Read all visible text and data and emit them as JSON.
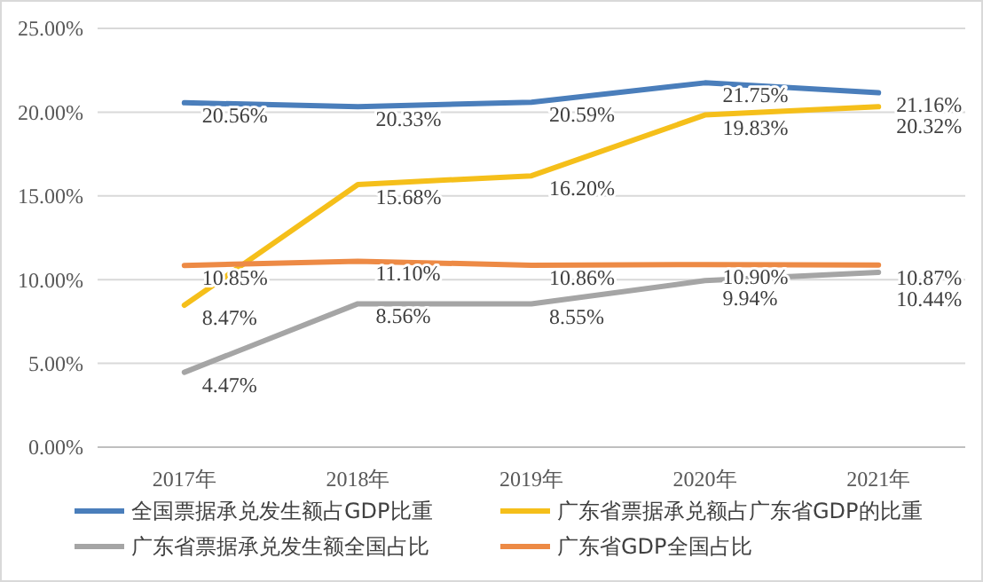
{
  "chart_data": {
    "type": "line",
    "categories": [
      "2017年",
      "2018年",
      "2019年",
      "2020年",
      "2021年"
    ],
    "ylim": [
      0,
      25
    ],
    "yticks": [
      {
        "value": 0,
        "label": "0.00%"
      },
      {
        "value": 5,
        "label": "5.00%"
      },
      {
        "value": 10,
        "label": "10.00%"
      },
      {
        "value": 15,
        "label": "15.00%"
      },
      {
        "value": 20,
        "label": "20.00%"
      },
      {
        "value": 25,
        "label": "25.00%"
      }
    ],
    "grid": "y",
    "legend": "bottom",
    "line_style": "solid",
    "marker": "none",
    "series": [
      {
        "name": "全国票据承兑发生额占GDP比重",
        "color": "#4a7ebb",
        "values": [
          20.56,
          20.33,
          20.59,
          21.75,
          21.16
        ],
        "value_labels": [
          "20.56%",
          "20.33%",
          "20.59%",
          "21.75%",
          "21.16%"
        ]
      },
      {
        "name": "广东省票据承兑额占广东省GDP的比重",
        "color": "#f5bf1a",
        "values": [
          8.47,
          15.68,
          16.2,
          19.83,
          20.32
        ],
        "value_labels": [
          "8.47%",
          "15.68%",
          "16.20%",
          "19.83%",
          "20.32%"
        ]
      },
      {
        "name": "广东省票据承兑发生额全国占比",
        "color": "#a5a5a5",
        "values": [
          4.47,
          8.56,
          8.55,
          9.94,
          10.44
        ],
        "value_labels": [
          "4.47%",
          "8.56%",
          "8.55%",
          "9.94%",
          "10.44%"
        ]
      },
      {
        "name": "广东省GDP全国占比",
        "color": "#ed8a45",
        "values": [
          10.85,
          11.1,
          10.86,
          10.9,
          10.87
        ],
        "value_labels": [
          "10.85%",
          "11.10%",
          "10.86%",
          "10.90%",
          "10.87%"
        ]
      }
    ]
  }
}
